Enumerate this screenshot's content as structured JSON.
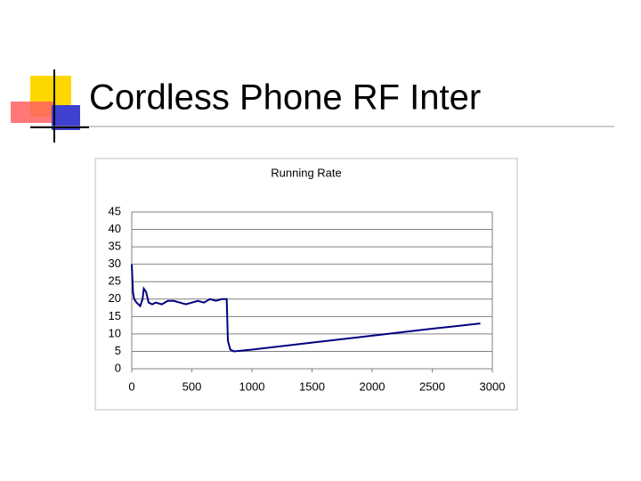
{
  "slide": {
    "title": "Cordless Phone RF Inter"
  },
  "chart_data": {
    "type": "line",
    "title": "Running Rate",
    "x": [
      0,
      10,
      20,
      40,
      70,
      90,
      100,
      120,
      140,
      170,
      200,
      250,
      300,
      350,
      400,
      450,
      500,
      550,
      600,
      650,
      700,
      750,
      790,
      800,
      820,
      850,
      1000,
      1500,
      2000,
      2500,
      2900
    ],
    "values": [
      30,
      22,
      20,
      19,
      18,
      20,
      23,
      22,
      19,
      18.5,
      19,
      18.5,
      19.5,
      19.5,
      19,
      18.5,
      19,
      19.5,
      19,
      20,
      19.5,
      20,
      20,
      8,
      5.5,
      5,
      5.5,
      7.5,
      9.5,
      11.5,
      13
    ],
    "color": "#000080",
    "xlim": [
      0,
      3000
    ],
    "xticks": [
      0,
      500,
      1000,
      1500,
      2000,
      2500,
      3000
    ],
    "ylim": [
      0,
      45
    ],
    "yticks": [
      0,
      5,
      10,
      15,
      20,
      25,
      30,
      35,
      40,
      45
    ],
    "grid": true
  }
}
